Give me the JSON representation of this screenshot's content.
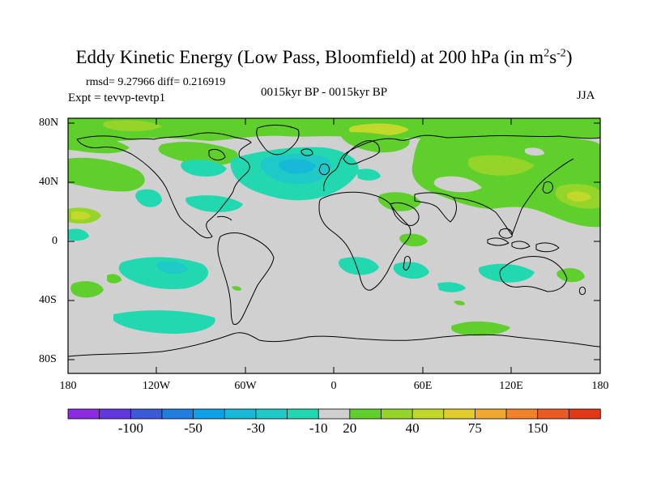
{
  "title": {
    "main": "Eddy Kinetic Energy (Low Pass, Bloomfield) at 200 hPa (in m",
    "sup1": "2",
    "mid": "s",
    "sup2": "-2",
    "end": ")"
  },
  "stats": "rmsd= 9.27966 diff= 0.216919",
  "expt": "Expt = tevvp-tevtp1",
  "center_label": "0015kyr BP - 0015kyr BP",
  "season": "JJA",
  "y_ticks": [
    "80N",
    "40N",
    "0",
    "40S",
    "80S"
  ],
  "x_ticks": [
    "180",
    "120W",
    "60W",
    "0",
    "60E",
    "120E",
    "180"
  ],
  "colorbar": {
    "colors": [
      "#8a2be2",
      "#6236e0",
      "#3c5ad8",
      "#1f7ee0",
      "#0ea0e8",
      "#17b8d8",
      "#1fc9c7",
      "#22d8b0",
      "#d0d0d0",
      "#5fcf2c",
      "#95d52a",
      "#c2d82a",
      "#e2cc2e",
      "#f0a830",
      "#f0822a",
      "#ec5a24",
      "#e23818"
    ],
    "labels": [
      "-100",
      "-50",
      "-30",
      "-10",
      "20",
      "40",
      "75",
      "150"
    ]
  },
  "legend_colors": {
    "ocean_background": "#d0d0d0",
    "positive_light": "#5fcf2c",
    "positive_mid": "#95d52a",
    "positive_high": "#c2d82a",
    "negative_light": "#22d8b0",
    "negative_mid": "#1fc9c7",
    "negative_high": "#17b8d8"
  }
}
